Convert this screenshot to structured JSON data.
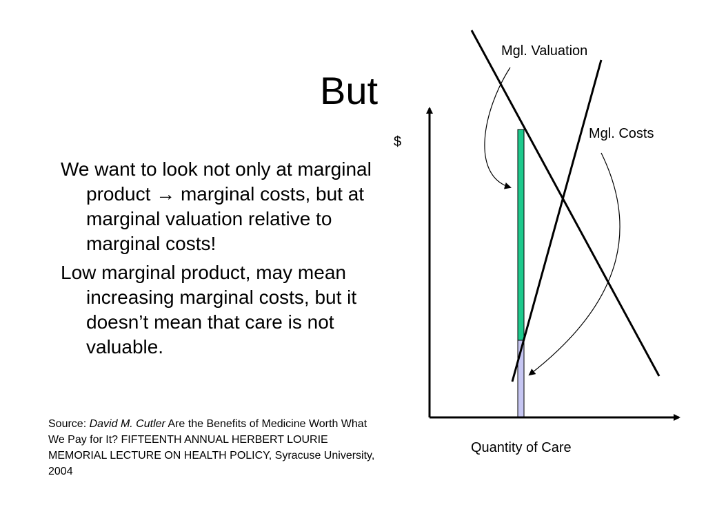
{
  "slide": {
    "title": "But",
    "bullets": [
      {
        "before_arrow": "We want to look not only at marginal product ",
        "arrow": "→",
        "after_arrow": " marginal costs, but at marginal valuation relative to marginal costs!"
      },
      {
        "text": "Low marginal product, may mean increasing marginal costs, but it doesn’t mean that care is not valuable."
      }
    ],
    "source": {
      "prefix": "Source: ",
      "author": "David M. Cutler",
      "rest": " Are the Benefits of Medicine Worth What We Pay for It? FIFTEENTH ANNUAL HERBERT LOURIE MEMORIAL LECTURE ON HEALTH POLICY, Syracuse University, 2004"
    }
  },
  "diagram": {
    "y_axis_label": "$",
    "x_axis_label": "Quantity of Care",
    "valuation_label": "Mgl. Valuation",
    "costs_label": "Mgl. Costs",
    "colors": {
      "valuation_bar": "#1ec98c",
      "cost_bar": "#c6c6f2",
      "lines": "#000000"
    }
  }
}
